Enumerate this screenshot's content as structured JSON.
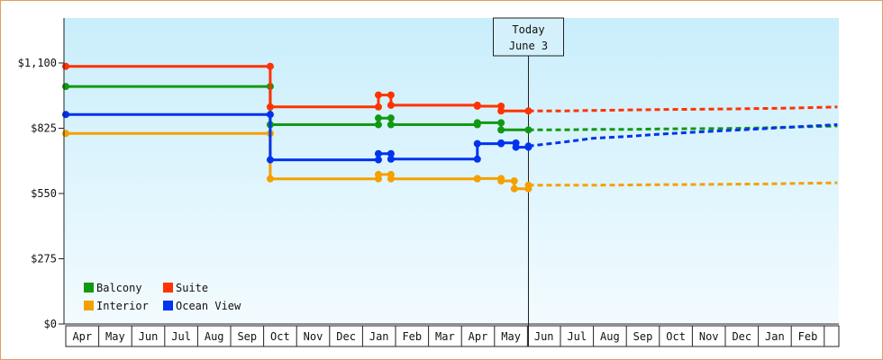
{
  "chart_data": {
    "type": "line",
    "y_ticks": [
      {
        "value": 0,
        "label": "$0"
      },
      {
        "value": 275,
        "label": "$275"
      },
      {
        "value": 550,
        "label": "$550"
      },
      {
        "value": 825,
        "label": "$825"
      },
      {
        "value": 1100,
        "label": "$1,100"
      }
    ],
    "ylim": [
      0,
      1100
    ],
    "months": [
      "Apr",
      "May",
      "Jun",
      "Jul",
      "Aug",
      "Sep",
      "Oct",
      "Nov",
      "Dec",
      "Jan",
      "Feb",
      "Mar",
      "Apr",
      "May",
      "Jun",
      "Jul",
      "Aug",
      "Sep",
      "Oct",
      "Nov",
      "Dec",
      "Jan",
      "Feb"
    ],
    "today": {
      "line1": "Today",
      "line2": "June 3",
      "x": 14.03
    },
    "legend_placement": "bottom-left",
    "grid": false,
    "series": [
      {
        "name": "Balcony",
        "color": "#119911",
        "history": [
          [
            0,
            1001
          ],
          [
            6.2,
            1001
          ],
          [
            6.2,
            840
          ],
          [
            9.48,
            840
          ],
          [
            9.48,
            868
          ],
          [
            9.86,
            868
          ],
          [
            9.86,
            840
          ],
          [
            12.48,
            840
          ],
          [
            12.48,
            848
          ],
          [
            13.2,
            848
          ],
          [
            13.2,
            818
          ],
          [
            14.03,
            818
          ]
        ],
        "forecast": [
          [
            14.03,
            818
          ],
          [
            15,
            818
          ],
          [
            16,
            820
          ],
          [
            17,
            820
          ],
          [
            18,
            822
          ],
          [
            19,
            823
          ],
          [
            20,
            824
          ],
          [
            21,
            826
          ],
          [
            22,
            830
          ],
          [
            23.4,
            835
          ]
        ]
      },
      {
        "name": "Suite",
        "color": "#ff3300",
        "history": [
          [
            0,
            1086
          ],
          [
            6.2,
            1086
          ],
          [
            6.2,
            915
          ],
          [
            9.48,
            915
          ],
          [
            9.48,
            965
          ],
          [
            9.86,
            965
          ],
          [
            9.86,
            922
          ],
          [
            12.48,
            922
          ],
          [
            12.48,
            918
          ],
          [
            13.2,
            918
          ],
          [
            13.2,
            898
          ],
          [
            14.03,
            898
          ]
        ],
        "forecast": [
          [
            14.03,
            898
          ],
          [
            15,
            898
          ],
          [
            16,
            900
          ],
          [
            17,
            902
          ],
          [
            18,
            904
          ],
          [
            19,
            905
          ],
          [
            20,
            906
          ],
          [
            21,
            908
          ],
          [
            22,
            910
          ],
          [
            23.4,
            915
          ]
        ]
      },
      {
        "name": "Interior",
        "color": "#f5a000",
        "history": [
          [
            0,
            803
          ],
          [
            6.2,
            803
          ],
          [
            6.2,
            612
          ],
          [
            9.48,
            612
          ],
          [
            9.48,
            630
          ],
          [
            9.86,
            630
          ],
          [
            9.86,
            612
          ],
          [
            12.48,
            612
          ],
          [
            12.48,
            613
          ],
          [
            13.2,
            613
          ],
          [
            13.2,
            603
          ],
          [
            13.6,
            603
          ],
          [
            13.6,
            570
          ],
          [
            14.03,
            570
          ],
          [
            14.03,
            585
          ]
        ],
        "forecast": [
          [
            14.03,
            585
          ],
          [
            15,
            585
          ],
          [
            16,
            585
          ],
          [
            17,
            586
          ],
          [
            18,
            587
          ],
          [
            19,
            588
          ],
          [
            20,
            589
          ],
          [
            21,
            590
          ],
          [
            22,
            592
          ],
          [
            23.4,
            595
          ]
        ]
      },
      {
        "name": "Ocean View",
        "color": "#0033ee",
        "history": [
          [
            0,
            883
          ],
          [
            6.2,
            883
          ],
          [
            6.2,
            692
          ],
          [
            9.48,
            692
          ],
          [
            9.48,
            718
          ],
          [
            9.86,
            718
          ],
          [
            9.86,
            695
          ],
          [
            12.48,
            695
          ],
          [
            12.48,
            760
          ],
          [
            13.2,
            760
          ],
          [
            13.2,
            763
          ],
          [
            13.65,
            763
          ],
          [
            13.65,
            745
          ],
          [
            14.03,
            745
          ],
          [
            14.03,
            750
          ]
        ],
        "forecast": [
          [
            14.03,
            750
          ],
          [
            15,
            765
          ],
          [
            16,
            783
          ],
          [
            17,
            790
          ],
          [
            18,
            800
          ],
          [
            19,
            808
          ],
          [
            20,
            815
          ],
          [
            21,
            822
          ],
          [
            22,
            830
          ],
          [
            23.4,
            840
          ]
        ]
      }
    ]
  }
}
